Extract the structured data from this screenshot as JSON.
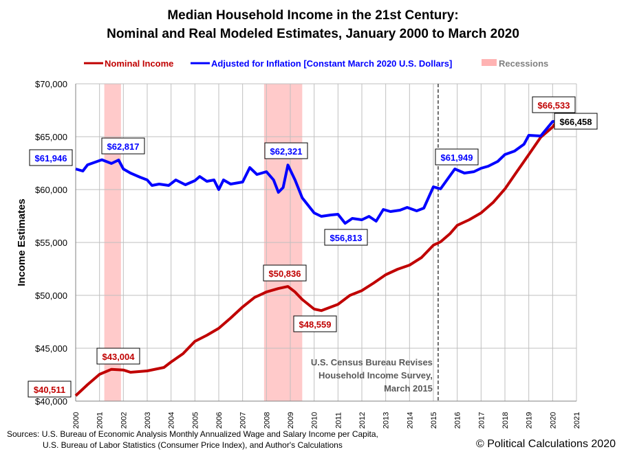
{
  "chart_data": {
    "type": "line",
    "title": "Median Household Income in the 21st Century:",
    "subtitle": "Nominal and Real Modeled Estimates, January 2000 to March 2020",
    "ylabel": "Income Estimates",
    "xlabel": "",
    "xlim": [
      2000,
      2021
    ],
    "ylim": [
      40000,
      70000
    ],
    "yticks": [
      40000,
      45000,
      50000,
      55000,
      60000,
      65000,
      70000
    ],
    "ytick_labels": [
      "$40,000",
      "$45,000",
      "$50,000",
      "$55,000",
      "$60,000",
      "$65,000",
      "$70,000"
    ],
    "xtick_labels": [
      "2000",
      "2001",
      "2002",
      "2003",
      "2004",
      "2005",
      "2006",
      "2007",
      "2008",
      "2009",
      "2010",
      "2011",
      "2012",
      "2013",
      "2014",
      "2015",
      "2016",
      "2017",
      "2018",
      "2019",
      "2020",
      "2021"
    ],
    "grid": true,
    "legend_placement": "top",
    "legend": [
      {
        "label": "Nominal Income",
        "color": "#c00000",
        "kind": "line"
      },
      {
        "label": "Adjusted for Inflation [Constant March 2020 U.S. Dollars]",
        "color": "#0000ff",
        "kind": "line"
      },
      {
        "label": "Recessions",
        "color": "#ffb3b3",
        "kind": "band"
      }
    ],
    "series": [
      {
        "name": "Nominal Income",
        "color": "#c00000",
        "x": [
          2000.0,
          2000.5,
          2001.0,
          2001.5,
          2002.0,
          2002.3,
          2003.0,
          2003.7,
          2004.0,
          2004.5,
          2005.0,
          2005.5,
          2006.0,
          2006.5,
          2007.0,
          2007.5,
          2008.0,
          2008.5,
          2008.9,
          2009.2,
          2009.5,
          2010.0,
          2010.3,
          2011.0,
          2011.5,
          2012.0,
          2012.5,
          2013.0,
          2013.5,
          2014.0,
          2014.5,
          2015.0,
          2015.3,
          2015.7,
          2016.0,
          2016.5,
          2017.0,
          2017.5,
          2018.0,
          2018.5,
          2019.0,
          2019.5,
          2020.0,
          2020.2
        ],
        "y": [
          40511,
          41558,
          42532,
          43004,
          42940,
          42730,
          42857,
          43182,
          43700,
          44480,
          45650,
          46230,
          46880,
          47860,
          48900,
          49800,
          50320,
          50640,
          50836,
          50320,
          49610,
          48700,
          48559,
          49150,
          50000,
          50450,
          51170,
          51950,
          52470,
          52860,
          53570,
          54740,
          55060,
          55840,
          56620,
          57140,
          57790,
          58770,
          60060,
          61690,
          63310,
          64940,
          65910,
          66533
        ]
      },
      {
        "name": "Adjusted for Inflation [Constant March 2020 U.S. Dollars]",
        "color": "#0000ff",
        "x": [
          2000.0,
          2000.3,
          2000.5,
          2001.1,
          2001.5,
          2001.8,
          2002.0,
          2002.3,
          2002.7,
          2003.0,
          2003.2,
          2003.5,
          2003.9,
          2004.2,
          2004.6,
          2005.0,
          2005.2,
          2005.5,
          2005.8,
          2006.0,
          2006.2,
          2006.5,
          2007.0,
          2007.3,
          2007.6,
          2008.0,
          2008.3,
          2008.5,
          2008.7,
          2008.9,
          2009.2,
          2009.5,
          2010.0,
          2010.3,
          2010.7,
          2011.0,
          2011.3,
          2011.6,
          2012.0,
          2012.3,
          2012.6,
          2012.9,
          2013.2,
          2013.6,
          2013.9,
          2014.3,
          2014.6,
          2015.0,
          2015.3,
          2015.9,
          2016.3,
          2016.7,
          2017.0,
          2017.3,
          2017.7,
          2018.0,
          2018.4,
          2018.8,
          2019.0,
          2019.5,
          2020.0,
          2020.2
        ],
        "y": [
          61946,
          61753,
          62338,
          62817,
          62467,
          62792,
          61948,
          61558,
          61169,
          60909,
          60390,
          60519,
          60390,
          60909,
          60454,
          60844,
          61234,
          60779,
          60909,
          60000,
          60909,
          60519,
          60714,
          62078,
          61428,
          61688,
          60909,
          59740,
          60195,
          62321,
          60909,
          59220,
          57792,
          57468,
          57597,
          57662,
          56813,
          57273,
          57143,
          57468,
          57013,
          58117,
          57922,
          58052,
          58312,
          57987,
          58247,
          60260,
          60065,
          61949,
          61558,
          61688,
          62013,
          62208,
          62662,
          63312,
          63636,
          64286,
          65130,
          65065,
          66430,
          66458
        ]
      }
    ],
    "recessions": [
      [
        2001.2,
        2001.9
      ],
      [
        2007.9,
        2009.5
      ]
    ],
    "annotations": [
      {
        "text": "$61,946",
        "series": "real",
        "x": 2000.0,
        "y": 61946
      },
      {
        "text": "$62,817",
        "series": "real",
        "x": 2001.1,
        "y": 62817
      },
      {
        "text": "$62,321",
        "series": "real",
        "x": 2008.9,
        "y": 62321
      },
      {
        "text": "$56,813",
        "series": "real",
        "x": 2011.3,
        "y": 56813
      },
      {
        "text": "$61,949",
        "series": "real",
        "x": 2015.9,
        "y": 61949
      },
      {
        "text": "$66,458",
        "series": "real",
        "x": 2020.2,
        "y": 66458
      },
      {
        "text": "$40,511",
        "series": "nominal",
        "x": 2000.0,
        "y": 40511
      },
      {
        "text": "$43,004",
        "series": "nominal",
        "x": 2001.5,
        "y": 43004
      },
      {
        "text": "$50,836",
        "series": "nominal",
        "x": 2008.9,
        "y": 50836
      },
      {
        "text": "$48,559",
        "series": "nominal",
        "x": 2010.3,
        "y": 48559
      },
      {
        "text": "$66,533",
        "series": "nominal",
        "x": 2020.2,
        "y": 66533
      }
    ],
    "event_line": {
      "x": 2015.2,
      "text": [
        "U.S. Census Bureau Revises",
        "Household Income Survey,",
        "March 2015"
      ]
    }
  },
  "footer": {
    "sources_line1": "Sources: U.S. Bureau of Economic Analysis Monthly Annualized Wage and Salary Income per Capita,",
    "sources_line2": "U.S. Bureau of Labor Statistics (Consumer  Price Index), and Author's Calculations",
    "copyright": "© Political Calculations 2020"
  }
}
